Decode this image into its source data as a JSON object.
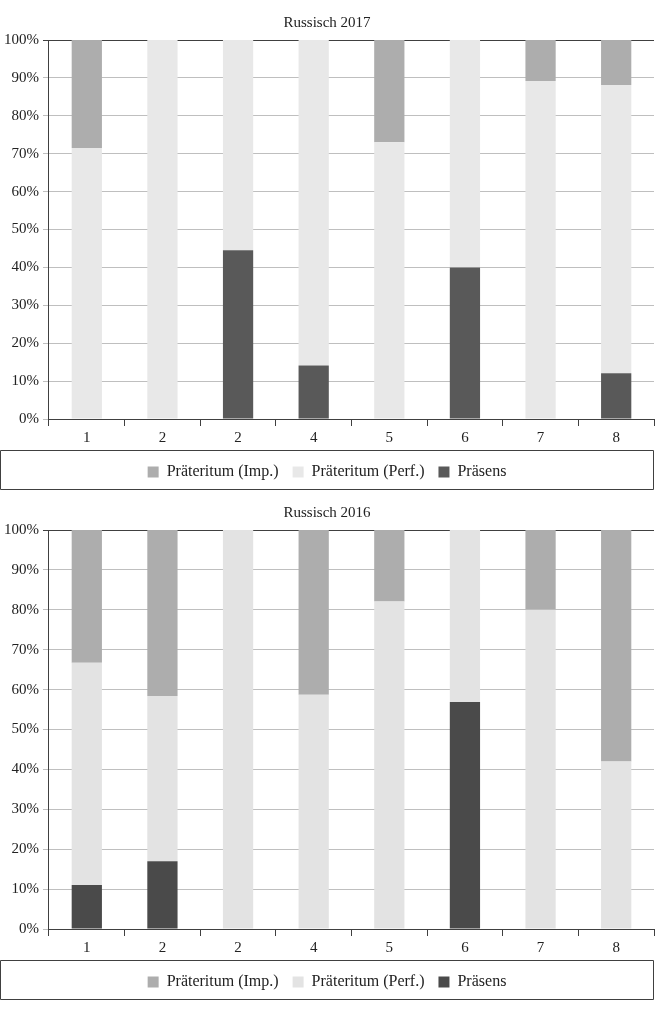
{
  "chart_data": [
    {
      "type": "bar",
      "title": "Russisch 2017",
      "stacked": true,
      "categories": [
        "1",
        "2",
        "2",
        "4",
        "5",
        "6",
        "7",
        "8"
      ],
      "series": [
        {
          "name": "Präsens",
          "color": "#595959",
          "values": [
            0,
            0,
            44.5,
            14.1,
            0,
            40,
            0,
            12.1
          ]
        },
        {
          "name": "Präteritum (Perf.)",
          "color": "#e8e8e8",
          "values": [
            71.5,
            100,
            55.5,
            85.9,
            73,
            60,
            89.2,
            76
          ]
        },
        {
          "name": "Präteritum (Imp.)",
          "color": "#adadad",
          "values": [
            28.5,
            0,
            0,
            0,
            27,
            0,
            10.8,
            11.9
          ]
        }
      ],
      "ylim": [
        0,
        100
      ],
      "yticks": [
        {
          "value": 0,
          "label": "0%"
        },
        {
          "value": 10,
          "label": "10%"
        },
        {
          "value": 20,
          "label": "20%"
        },
        {
          "value": 30,
          "label": "30%"
        },
        {
          "value": 40,
          "label": "40%"
        },
        {
          "value": 50,
          "label": "50%"
        },
        {
          "value": 60,
          "label": "60%"
        },
        {
          "value": 70,
          "label": "70%"
        },
        {
          "value": 80,
          "label": "80%"
        },
        {
          "value": 90,
          "label": "90%"
        },
        {
          "value": 100,
          "label": "100%"
        }
      ],
      "grid": "y",
      "legend": "bottom"
    },
    {
      "type": "bar",
      "title": "Russisch 2016",
      "stacked": true,
      "categories": [
        "1",
        "2",
        "2",
        "4",
        "5",
        "6",
        "7",
        "8"
      ],
      "series": [
        {
          "name": "Präsens",
          "color": "#4a4a4a",
          "values": [
            11,
            17,
            0,
            0,
            0,
            56.9,
            0,
            0
          ]
        },
        {
          "name": "Präteritum (Perf.)",
          "color": "#e3e3e3",
          "values": [
            55.7,
            41.4,
            100,
            58.7,
            82.1,
            43.1,
            80,
            42
          ]
        },
        {
          "name": "Präteritum (Imp.)",
          "color": "#adadad",
          "values": [
            33.3,
            41.6,
            0,
            41.3,
            17.9,
            0,
            20,
            58
          ]
        }
      ],
      "ylim": [
        0,
        100
      ],
      "yticks": [
        {
          "value": 0,
          "label": "0%"
        },
        {
          "value": 10,
          "label": "10%"
        },
        {
          "value": 20,
          "label": "20%"
        },
        {
          "value": 30,
          "label": "30%"
        },
        {
          "value": 40,
          "label": "40%"
        },
        {
          "value": 50,
          "label": "50%"
        },
        {
          "value": 60,
          "label": "60%"
        },
        {
          "value": 70,
          "label": "70%"
        },
        {
          "value": 80,
          "label": "80%"
        },
        {
          "value": 90,
          "label": "90%"
        },
        {
          "value": 100,
          "label": "100%"
        }
      ],
      "grid": "y",
      "legend": "bottom"
    }
  ]
}
